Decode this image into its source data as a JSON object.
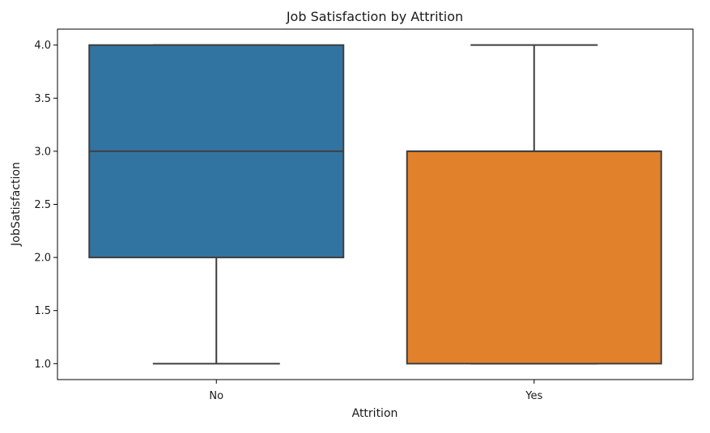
{
  "chart_data": {
    "type": "box",
    "title": "Job Satisfaction by Attrition",
    "xlabel": "Attrition",
    "ylabel": "JobSatisfaction",
    "categories": [
      "No",
      "Yes"
    ],
    "ylim": [
      0.85,
      4.15
    ],
    "yticks": [
      1.0,
      1.5,
      2.0,
      2.5,
      3.0,
      3.5,
      4.0
    ],
    "ytick_labels": [
      "1.0",
      "1.5",
      "2.0",
      "2.5",
      "3.0",
      "3.5",
      "4.0"
    ],
    "grid": false,
    "legend": "none",
    "series": [
      {
        "category": "No",
        "min": 1.0,
        "q1": 2.0,
        "median": 3.0,
        "q3": 4.0,
        "max": 4.0,
        "color": "#3274a1"
      },
      {
        "category": "Yes",
        "min": 1.0,
        "q1": 1.0,
        "median": 3.0,
        "q3": 3.0,
        "max": 4.0,
        "color": "#e1812c"
      }
    ],
    "line_color": "#3f3f3f"
  }
}
